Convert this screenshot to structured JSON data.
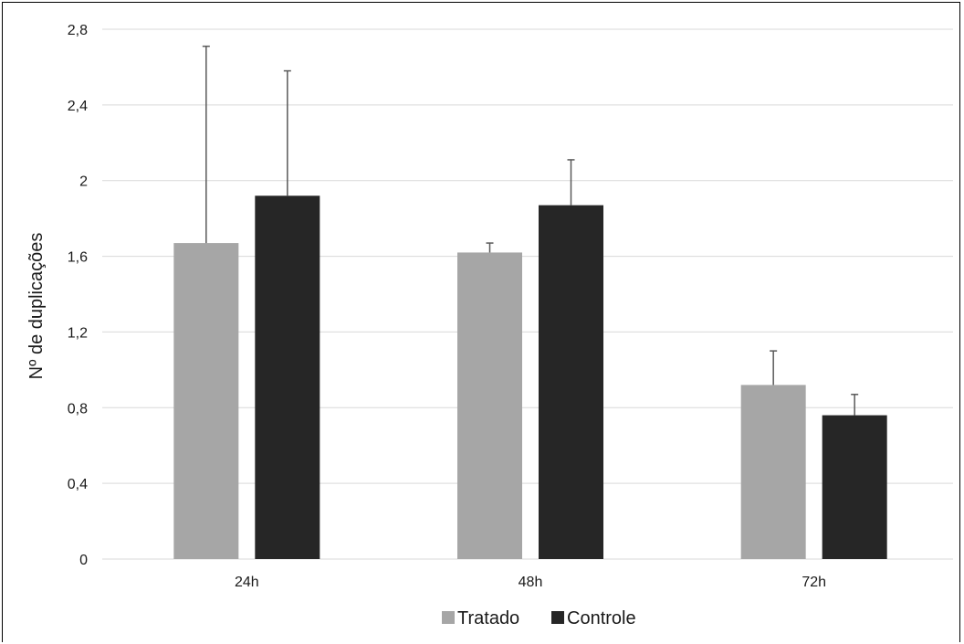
{
  "chart_data": {
    "type": "bar",
    "title": "",
    "xlabel": "",
    "ylabel": "Nº de duplicações",
    "categories": [
      "24h",
      "48h",
      "72h"
    ],
    "ylim": [
      0,
      2.8
    ],
    "yticks": [
      "0",
      "0,4",
      "0,8",
      "1,2",
      "1,6",
      "2",
      "2,4",
      "2,8"
    ],
    "ytick_values": [
      0,
      0.4,
      0.8,
      1.2,
      1.6,
      2.0,
      2.4,
      2.8
    ],
    "grid": true,
    "legend_position": "bottom",
    "series": [
      {
        "name": "Tratado",
        "color": "#a6a6a6",
        "values": [
          1.67,
          1.62,
          0.92
        ],
        "errors": [
          1.04,
          0.05,
          0.18
        ]
      },
      {
        "name": "Controle",
        "color": "#262626",
        "values": [
          1.92,
          1.87,
          0.76
        ],
        "errors": [
          0.66,
          0.24,
          0.11
        ]
      }
    ]
  }
}
